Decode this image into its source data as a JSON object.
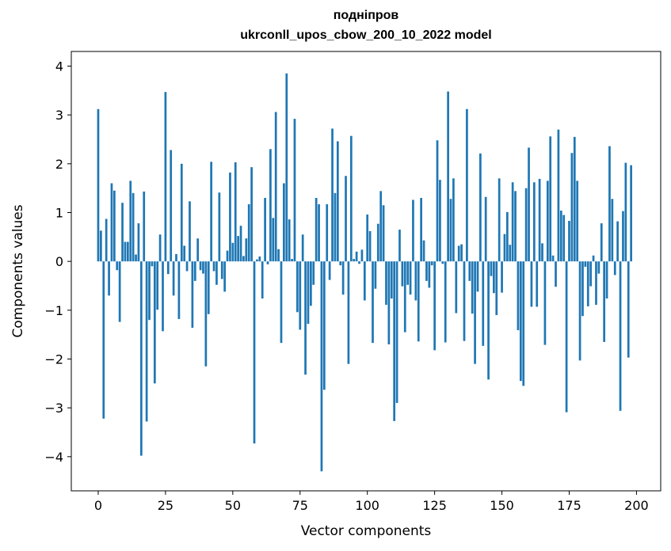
{
  "chart_data": {
    "type": "bar",
    "title": "подніпров",
    "subtitle": "ukrconll_upos_cbow_200_10_2022 model",
    "xlabel": "Vector components",
    "ylabel": "Components values",
    "xlim": [
      -10,
      209
    ],
    "ylim": [
      -4.7,
      4.3
    ],
    "xticks": [
      0,
      25,
      50,
      75,
      100,
      125,
      150,
      175,
      200
    ],
    "yticks": [
      -4,
      -3,
      -2,
      -1,
      0,
      1,
      2,
      3,
      4
    ],
    "grid": false,
    "bar_color": "#1f77b4",
    "values": [
      3.12,
      0.63,
      -3.22,
      0.87,
      -0.7,
      1.6,
      1.45,
      -0.18,
      -1.24,
      1.2,
      0.4,
      0.4,
      1.65,
      1.4,
      0.14,
      0.78,
      -3.98,
      1.43,
      -3.28,
      -1.2,
      -0.1,
      -2.5,
      -0.99,
      0.55,
      -1.43,
      3.47,
      -0.26,
      2.28,
      -0.7,
      0.15,
      -1.18,
      2.0,
      0.32,
      -0.2,
      1.23,
      -1.36,
      -0.4,
      0.47,
      -0.18,
      -0.25,
      -2.15,
      -1.08,
      2.04,
      -0.2,
      -0.48,
      1.41,
      -0.36,
      -0.62,
      0.22,
      1.82,
      0.38,
      2.03,
      0.52,
      0.73,
      0.11,
      0.47,
      1.17,
      1.93,
      -3.73,
      0.04,
      0.1,
      -0.76,
      1.3,
      -0.06,
      2.3,
      0.89,
      3.06,
      0.25,
      -1.67,
      1.6,
      3.85,
      0.86,
      0.05,
      2.92,
      -1.04,
      -1.4,
      0.55,
      -2.32,
      -1.28,
      -0.91,
      -0.48,
      1.3,
      1.17,
      -4.3,
      -2.63,
      1.17,
      -0.38,
      2.72,
      1.4,
      2.46,
      -0.08,
      -0.68,
      1.75,
      -2.1,
      2.57,
      0.05,
      0.2,
      -0.05,
      0.24,
      -0.8,
      0.96,
      0.62,
      -1.67,
      -0.56,
      0.77,
      1.44,
      1.15,
      -0.89,
      -1.7,
      -0.76,
      -3.27,
      -2.9,
      0.65,
      -0.51,
      -1.45,
      -0.48,
      -0.68,
      1.26,
      -0.8,
      -1.64,
      1.3,
      0.43,
      -0.4,
      -0.54,
      -0.08,
      -1.82,
      2.48,
      1.67,
      -0.05,
      -1.66,
      3.48,
      1.28,
      1.7,
      -1.06,
      0.32,
      0.35,
      -1.63,
      3.12,
      -0.4,
      -1.07,
      -2.1,
      -0.62,
      2.21,
      -1.73,
      1.32,
      -2.42,
      -0.3,
      -0.65,
      -1.1,
      1.7,
      -0.64,
      0.56,
      1.01,
      0.34,
      1.62,
      1.44,
      -1.41,
      -2.45,
      -2.55,
      1.5,
      2.33,
      -0.93,
      1.62,
      -0.93,
      1.69,
      0.37,
      -1.71,
      1.65,
      2.56,
      0.12,
      -0.52,
      2.7,
      1.04,
      0.95,
      -3.09,
      0.83,
      2.22,
      2.55,
      1.65,
      -2.03,
      -1.12,
      -0.11,
      -0.92,
      -0.51,
      0.12,
      -0.89,
      -0.25,
      0.78,
      -1.65,
      -0.76,
      2.36,
      1.28,
      -0.28,
      0.82,
      -3.06,
      1.03,
      2.02,
      -1.97,
      1.97
    ]
  }
}
